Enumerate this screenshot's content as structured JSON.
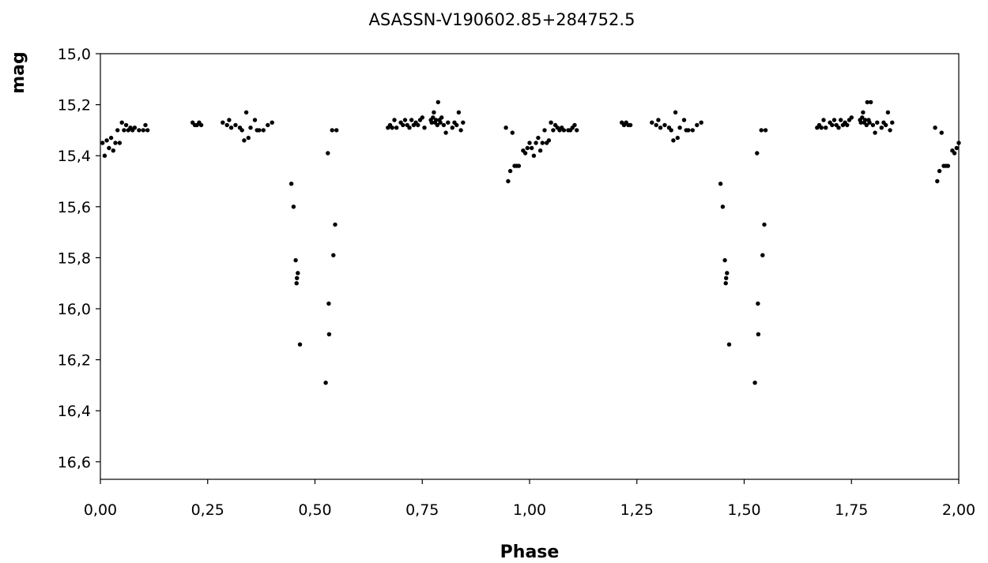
{
  "chart_data": {
    "type": "scatter",
    "title": "ASASSN-V190602.85+284752.5",
    "xlabel": "Phase",
    "ylabel": "mag",
    "xlim": [
      0,
      2
    ],
    "ylim": [
      15.0,
      16.7
    ],
    "y_inverted": true,
    "grid": false,
    "legend": "none",
    "decimal_separator": ",",
    "x_ticks": [
      "0,00",
      "0,25",
      "0,50",
      "0,75",
      "1,00",
      "1,25",
      "1,50",
      "1,75",
      "2,00"
    ],
    "y_ticks": [
      "15,0",
      "15,2",
      "15,4",
      "15,6",
      "15,8",
      "16,0",
      "16,2",
      "16,4",
      "16,6"
    ],
    "marker_color": "#000000",
    "series": [
      {
        "points": [
          [
            0.005,
            15.35
          ],
          [
            0.01,
            15.4
          ],
          [
            0.015,
            15.34
          ],
          [
            0.02,
            15.37
          ],
          [
            0.025,
            15.33
          ],
          [
            0.03,
            15.38
          ],
          [
            0.035,
            15.35
          ],
          [
            0.04,
            15.3
          ],
          [
            0.045,
            15.35
          ],
          [
            0.05,
            15.27
          ],
          [
            0.055,
            15.3
          ],
          [
            0.06,
            15.28
          ],
          [
            0.065,
            15.3
          ],
          [
            0.07,
            15.29
          ],
          [
            0.075,
            15.3
          ],
          [
            0.08,
            15.29
          ],
          [
            0.09,
            15.3
          ],
          [
            0.1,
            15.3
          ],
          [
            0.105,
            15.28
          ],
          [
            0.11,
            15.3
          ],
          [
            0.215,
            15.27
          ],
          [
            0.22,
            15.28
          ],
          [
            0.225,
            15.28
          ],
          [
            0.23,
            15.27
          ],
          [
            0.235,
            15.28
          ],
          [
            0.285,
            15.27
          ],
          [
            0.295,
            15.28
          ],
          [
            0.3,
            15.26
          ],
          [
            0.305,
            15.29
          ],
          [
            0.315,
            15.28
          ],
          [
            0.325,
            15.29
          ],
          [
            0.33,
            15.3
          ],
          [
            0.335,
            15.34
          ],
          [
            0.34,
            15.23
          ],
          [
            0.345,
            15.33
          ],
          [
            0.35,
            15.29
          ],
          [
            0.36,
            15.26
          ],
          [
            0.365,
            15.3
          ],
          [
            0.37,
            15.3
          ],
          [
            0.38,
            15.3
          ],
          [
            0.39,
            15.28
          ],
          [
            0.4,
            15.27
          ],
          [
            0.445,
            15.51
          ],
          [
            0.45,
            15.6
          ],
          [
            0.455,
            15.81
          ],
          [
            0.458,
            15.88
          ],
          [
            0.457,
            15.9
          ],
          [
            0.46,
            15.86
          ],
          [
            0.465,
            16.14
          ],
          [
            0.525,
            16.29
          ],
          [
            0.53,
            15.39
          ],
          [
            0.532,
            15.98
          ],
          [
            0.533,
            16.1
          ],
          [
            0.54,
            15.3
          ],
          [
            0.543,
            15.79
          ],
          [
            0.547,
            15.67
          ],
          [
            0.55,
            15.3
          ],
          [
            0.67,
            15.29
          ],
          [
            0.675,
            15.28
          ],
          [
            0.68,
            15.29
          ],
          [
            0.685,
            15.26
          ],
          [
            0.69,
            15.29
          ],
          [
            0.7,
            15.27
          ],
          [
            0.705,
            15.28
          ],
          [
            0.71,
            15.26
          ],
          [
            0.715,
            15.28
          ],
          [
            0.72,
            15.29
          ],
          [
            0.725,
            15.26
          ],
          [
            0.73,
            15.28
          ],
          [
            0.735,
            15.27
          ],
          [
            0.74,
            15.28
          ],
          [
            0.745,
            15.26
          ],
          [
            0.75,
            15.25
          ],
          [
            0.755,
            15.29
          ],
          [
            0.77,
            15.26
          ],
          [
            0.772,
            15.27
          ],
          [
            0.775,
            15.25
          ],
          [
            0.777,
            15.23
          ],
          [
            0.78,
            15.27
          ],
          [
            0.782,
            15.26
          ],
          [
            0.785,
            15.28
          ],
          [
            0.787,
            15.19
          ],
          [
            0.79,
            15.26
          ],
          [
            0.792,
            15.27
          ],
          [
            0.795,
            15.25
          ],
          [
            0.8,
            15.28
          ],
          [
            0.805,
            15.31
          ],
          [
            0.81,
            15.27
          ],
          [
            0.82,
            15.29
          ],
          [
            0.825,
            15.27
          ],
          [
            0.83,
            15.28
          ],
          [
            0.835,
            15.23
          ],
          [
            0.84,
            15.3
          ],
          [
            0.845,
            15.27
          ],
          [
            0.945,
            15.29
          ],
          [
            0.95,
            15.5
          ],
          [
            0.955,
            15.46
          ],
          [
            0.96,
            15.31
          ],
          [
            0.965,
            15.44
          ],
          [
            0.97,
            15.44
          ],
          [
            0.975,
            15.44
          ],
          [
            0.985,
            15.38
          ],
          [
            0.99,
            15.39
          ],
          [
            0.995,
            15.37
          ],
          [
            1.0,
            15.35
          ],
          [
            1.005,
            15.37
          ],
          [
            1.01,
            15.4
          ],
          [
            1.015,
            15.35
          ],
          [
            1.02,
            15.33
          ],
          [
            1.025,
            15.38
          ],
          [
            1.03,
            15.35
          ],
          [
            1.035,
            15.3
          ],
          [
            1.04,
            15.35
          ],
          [
            1.045,
            15.34
          ],
          [
            1.05,
            15.27
          ],
          [
            1.055,
            15.3
          ],
          [
            1.06,
            15.28
          ],
          [
            1.065,
            15.29
          ],
          [
            1.07,
            15.3
          ],
          [
            1.075,
            15.29
          ],
          [
            1.08,
            15.3
          ],
          [
            1.09,
            15.3
          ],
          [
            1.095,
            15.3
          ],
          [
            1.1,
            15.29
          ],
          [
            1.105,
            15.28
          ],
          [
            1.11,
            15.3
          ],
          [
            1.215,
            15.27
          ],
          [
            1.22,
            15.28
          ],
          [
            1.225,
            15.27
          ],
          [
            1.23,
            15.28
          ],
          [
            1.235,
            15.28
          ],
          [
            1.285,
            15.27
          ],
          [
            1.295,
            15.28
          ],
          [
            1.3,
            15.26
          ],
          [
            1.305,
            15.29
          ],
          [
            1.315,
            15.28
          ],
          [
            1.325,
            15.29
          ],
          [
            1.33,
            15.3
          ],
          [
            1.335,
            15.34
          ],
          [
            1.34,
            15.23
          ],
          [
            1.345,
            15.33
          ],
          [
            1.35,
            15.29
          ],
          [
            1.36,
            15.26
          ],
          [
            1.365,
            15.3
          ],
          [
            1.37,
            15.3
          ],
          [
            1.38,
            15.3
          ],
          [
            1.39,
            15.28
          ],
          [
            1.4,
            15.27
          ],
          [
            1.445,
            15.51
          ],
          [
            1.45,
            15.6
          ],
          [
            1.455,
            15.81
          ],
          [
            1.457,
            15.9
          ],
          [
            1.458,
            15.88
          ],
          [
            1.46,
            15.86
          ],
          [
            1.465,
            16.14
          ],
          [
            1.525,
            16.29
          ],
          [
            1.53,
            15.39
          ],
          [
            1.532,
            15.98
          ],
          [
            1.533,
            16.1
          ],
          [
            1.54,
            15.3
          ],
          [
            1.543,
            15.79
          ],
          [
            1.547,
            15.67
          ],
          [
            1.55,
            15.3
          ],
          [
            1.67,
            15.29
          ],
          [
            1.675,
            15.28
          ],
          [
            1.68,
            15.29
          ],
          [
            1.685,
            15.26
          ],
          [
            1.69,
            15.29
          ],
          [
            1.7,
            15.27
          ],
          [
            1.705,
            15.28
          ],
          [
            1.71,
            15.26
          ],
          [
            1.715,
            15.28
          ],
          [
            1.72,
            15.29
          ],
          [
            1.725,
            15.26
          ],
          [
            1.73,
            15.28
          ],
          [
            1.735,
            15.27
          ],
          [
            1.74,
            15.28
          ],
          [
            1.745,
            15.26
          ],
          [
            1.75,
            15.25
          ],
          [
            1.77,
            15.26
          ],
          [
            1.772,
            15.27
          ],
          [
            1.775,
            15.25
          ],
          [
            1.777,
            15.23
          ],
          [
            1.78,
            15.27
          ],
          [
            1.782,
            15.26
          ],
          [
            1.785,
            15.28
          ],
          [
            1.787,
            15.19
          ],
          [
            1.79,
            15.26
          ],
          [
            1.792,
            15.27
          ],
          [
            1.795,
            15.19
          ],
          [
            1.8,
            15.28
          ],
          [
            1.805,
            15.31
          ],
          [
            1.81,
            15.27
          ],
          [
            1.82,
            15.29
          ],
          [
            1.825,
            15.27
          ],
          [
            1.83,
            15.28
          ],
          [
            1.835,
            15.23
          ],
          [
            1.84,
            15.3
          ],
          [
            1.845,
            15.27
          ],
          [
            1.945,
            15.29
          ],
          [
            1.95,
            15.5
          ],
          [
            1.955,
            15.46
          ],
          [
            1.96,
            15.31
          ],
          [
            1.965,
            15.44
          ],
          [
            1.97,
            15.44
          ],
          [
            1.975,
            15.44
          ],
          [
            1.985,
            15.38
          ],
          [
            1.99,
            15.39
          ],
          [
            1.995,
            15.37
          ],
          [
            2.0,
            15.35
          ]
        ]
      }
    ]
  }
}
